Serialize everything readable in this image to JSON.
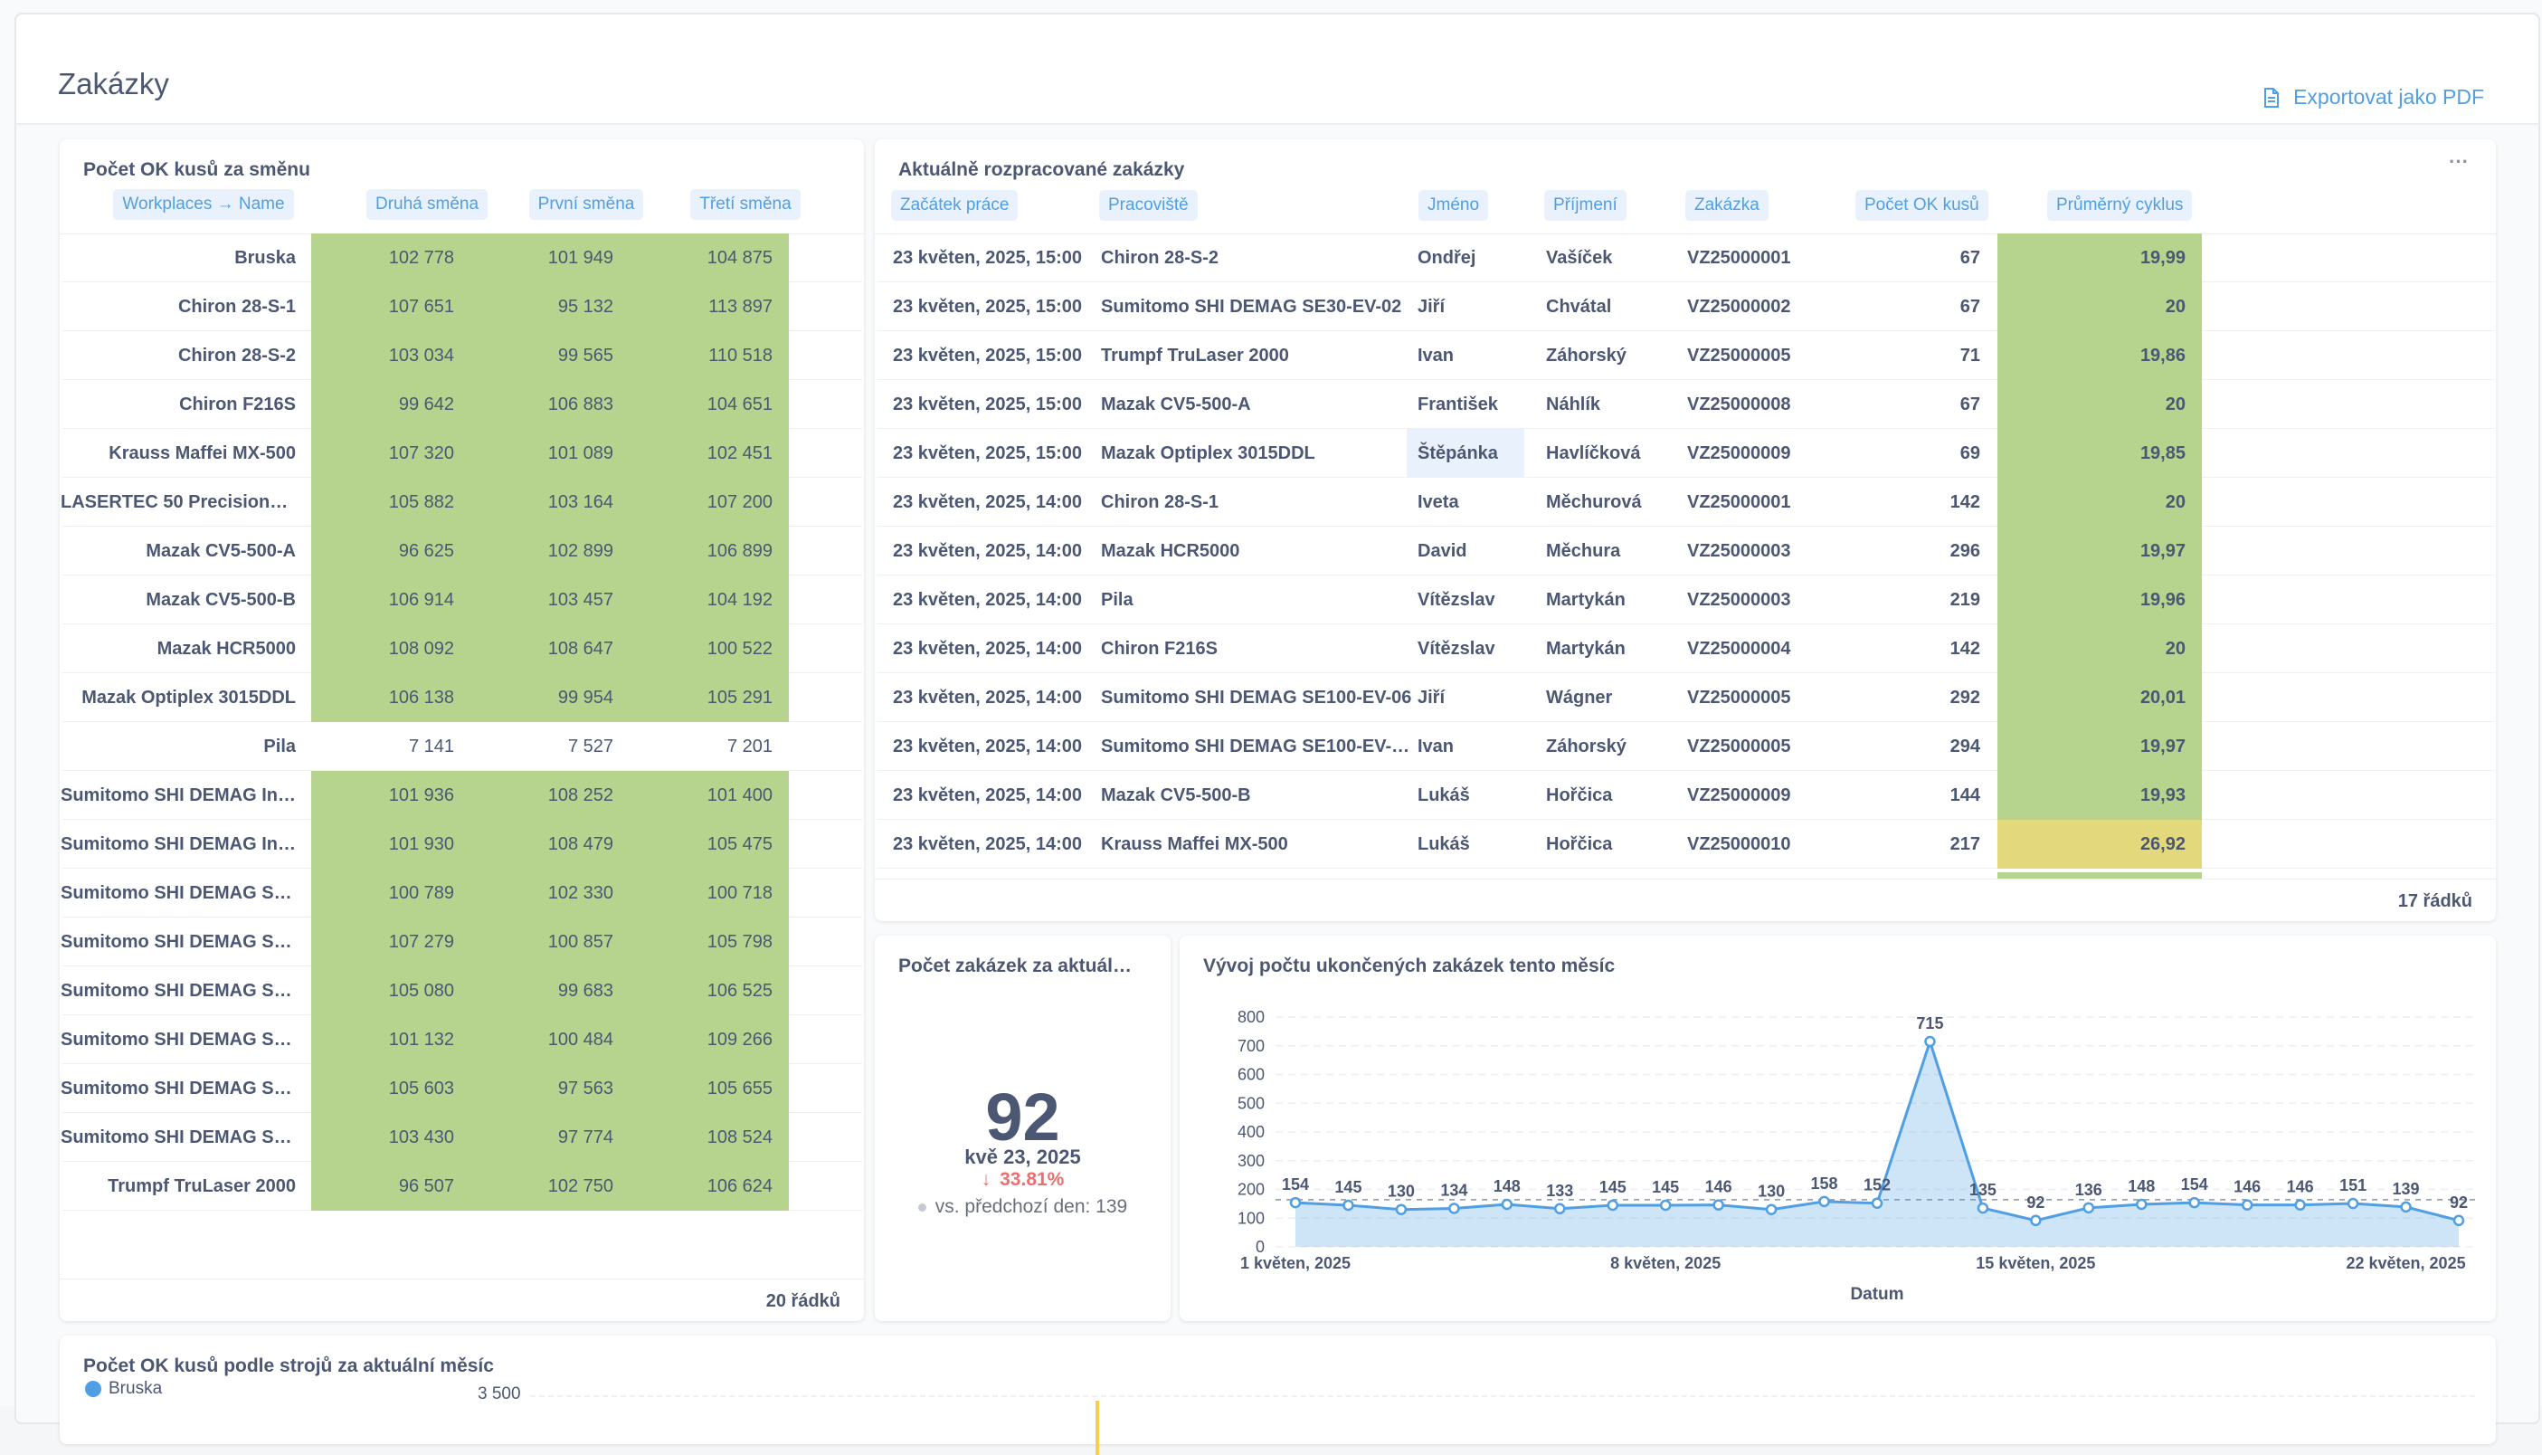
{
  "page": {
    "title": "Zakázky",
    "export_label": "Exportovat jako PDF"
  },
  "pivot": {
    "title": "Počet OK kusů za směnu",
    "headers": [
      "Workplaces → Name",
      "Druhá směna",
      "První směna",
      "Třetí směna"
    ],
    "rows": [
      {
        "name": "Bruska",
        "v": [
          "102 778",
          "101 949",
          "104 875"
        ],
        "green": true
      },
      {
        "name": "Chiron 28-S-1",
        "v": [
          "107 651",
          "95 132",
          "113 897"
        ],
        "green": true
      },
      {
        "name": "Chiron 28-S-2",
        "v": [
          "103 034",
          "99 565",
          "110 518"
        ],
        "green": true
      },
      {
        "name": "Chiron F216S",
        "v": [
          "99 642",
          "106 883",
          "104 651"
        ],
        "green": true
      },
      {
        "name": "Krauss Maffei MX-500",
        "v": [
          "107 320",
          "101 089",
          "102 451"
        ],
        "green": true
      },
      {
        "name": "LASERTEC 50 PrecisionTool",
        "v": [
          "105 882",
          "103 164",
          "107 200"
        ],
        "green": true
      },
      {
        "name": "Mazak CV5-500-A",
        "v": [
          "96 625",
          "102 899",
          "106 899"
        ],
        "green": true
      },
      {
        "name": "Mazak CV5-500-B",
        "v": [
          "106 914",
          "103 457",
          "104 192"
        ],
        "green": true
      },
      {
        "name": "Mazak HCR5000",
        "v": [
          "108 092",
          "108 647",
          "100 522"
        ],
        "green": true
      },
      {
        "name": "Mazak Optiplex 3015DDL",
        "v": [
          "106 138",
          "99 954",
          "105 291"
        ],
        "green": true
      },
      {
        "name": "Pila",
        "v": [
          "7 141",
          "7 527",
          "7 201"
        ],
        "green": false
      },
      {
        "name": "Sumitomo SHI DEMAG Int…",
        "v": [
          "101 936",
          "108 252",
          "101 400"
        ],
        "green": true
      },
      {
        "name": "Sumitomo SHI DEMAG Int…",
        "v": [
          "101 930",
          "108 479",
          "105 475"
        ],
        "green": true
      },
      {
        "name": "Sumitomo SHI DEMAG SE…",
        "v": [
          "100 789",
          "102 330",
          "100 718"
        ],
        "green": true
      },
      {
        "name": "Sumitomo SHI DEMAG SE…",
        "v": [
          "107 279",
          "100 857",
          "105 798"
        ],
        "green": true
      },
      {
        "name": "Sumitomo SHI DEMAG SE…",
        "v": [
          "105 080",
          "99 683",
          "106 525"
        ],
        "green": true
      },
      {
        "name": "Sumitomo SHI DEMAG SE…",
        "v": [
          "101 132",
          "100 484",
          "109 266"
        ],
        "green": true
      },
      {
        "name": "Sumitomo SHI DEMAG SE…",
        "v": [
          "105 603",
          "97 563",
          "105 655"
        ],
        "green": true
      },
      {
        "name": "Sumitomo SHI DEMAG SE…",
        "v": [
          "103 430",
          "97 774",
          "108 524"
        ],
        "green": true
      },
      {
        "name": "Trumpf TruLaser 2000",
        "v": [
          "96 507",
          "102 750",
          "106 624"
        ],
        "green": true
      }
    ],
    "footer": "20 řádků"
  },
  "orders": {
    "title": "Aktuálně rozpracované zakázky",
    "more": "···",
    "headers": [
      "Začátek práce",
      "Pracoviště",
      "Jméno",
      "Příjmení",
      "Zakázka",
      "Počet OK kusů",
      "Průměrný cyklus"
    ],
    "rows": [
      {
        "start": "23 květen, 2025, 15:00",
        "ws": "Chiron 28-S-2",
        "fn": "Ondřej",
        "ln": "Vašíček",
        "order": "VZ25000001",
        "ok": "67",
        "cyc": "19,99",
        "color": "#b6d48e"
      },
      {
        "start": "23 květen, 2025, 15:00",
        "ws": "Sumitomo SHI DEMAG SE30-EV-02",
        "fn": "Jiří",
        "ln": "Chvátal",
        "order": "VZ25000002",
        "ok": "67",
        "cyc": "20",
        "color": "#b6d48e"
      },
      {
        "start": "23 květen, 2025, 15:00",
        "ws": "Trumpf TruLaser 2000",
        "fn": "Ivan",
        "ln": "Záhorský",
        "order": "VZ25000005",
        "ok": "71",
        "cyc": "19,86",
        "color": "#b6d48e"
      },
      {
        "start": "23 květen, 2025, 15:00",
        "ws": "Mazak CV5-500-A",
        "fn": "František",
        "ln": "Náhlík",
        "order": "VZ25000008",
        "ok": "67",
        "cyc": "20",
        "color": "#b6d48e"
      },
      {
        "start": "23 květen, 2025, 15:00",
        "ws": "Mazak Optiplex 3015DDL",
        "fn": "Štěpánka",
        "ln": "Havlíčková",
        "order": "VZ25000009",
        "ok": "69",
        "cyc": "19,85",
        "color": "#b6d48e",
        "hl": true
      },
      {
        "start": "23 květen, 2025, 14:00",
        "ws": "Chiron 28-S-1",
        "fn": "Iveta",
        "ln": "Měchurová",
        "order": "VZ25000001",
        "ok": "142",
        "cyc": "20",
        "color": "#b6d48e"
      },
      {
        "start": "23 květen, 2025, 14:00",
        "ws": "Mazak HCR5000",
        "fn": "David",
        "ln": "Měchura",
        "order": "VZ25000003",
        "ok": "296",
        "cyc": "19,97",
        "color": "#b6d48e"
      },
      {
        "start": "23 květen, 2025, 14:00",
        "ws": "Pila",
        "fn": "Vítězslav",
        "ln": "Martykán",
        "order": "VZ25000003",
        "ok": "219",
        "cyc": "19,96",
        "color": "#b6d48e"
      },
      {
        "start": "23 květen, 2025, 14:00",
        "ws": "Chiron F216S",
        "fn": "Vítězslav",
        "ln": "Martykán",
        "order": "VZ25000004",
        "ok": "142",
        "cyc": "20",
        "color": "#b6d48e"
      },
      {
        "start": "23 květen, 2025, 14:00",
        "ws": "Sumitomo SHI DEMAG SE100-EV-06",
        "fn": "Jiří",
        "ln": "Wágner",
        "order": "VZ25000005",
        "ok": "292",
        "cyc": "20,01",
        "color": "#b6d48e"
      },
      {
        "start": "23 květen, 2025, 14:00",
        "ws": "Sumitomo SHI DEMAG SE100-EV-0…",
        "fn": "Ivan",
        "ln": "Záhorský",
        "order": "VZ25000005",
        "ok": "294",
        "cyc": "19,97",
        "color": "#b6d48e"
      },
      {
        "start": "23 květen, 2025, 14:00",
        "ws": "Mazak CV5-500-B",
        "fn": "Lukáš",
        "ln": "Hořčica",
        "order": "VZ25000009",
        "ok": "144",
        "cyc": "19,93",
        "color": "#b6d48e"
      },
      {
        "start": "23 květen, 2025, 14:00",
        "ws": "Krauss Maffei MX-500",
        "fn": "Lukáš",
        "ln": "Hořčica",
        "order": "VZ25000010",
        "ok": "217",
        "cyc": "26,92",
        "color": "#e3d97c"
      }
    ],
    "footer": "17 řádků"
  },
  "kpi": {
    "title": "Počet zakázek za aktuál…",
    "value": "92",
    "date": "kvě 23, 2025",
    "change": "33.81%",
    "previous": "vs. předchozí den: 139"
  },
  "chart_data": [
    {
      "type": "area",
      "title": "Vývoj počtu ukončených zakázek tento měsíc",
      "xlabel": "Datum",
      "ylabel": "",
      "ylim": [
        0,
        800
      ],
      "yticks": [
        "0",
        "100",
        "200",
        "300",
        "400",
        "500",
        "600",
        "700",
        "800"
      ],
      "xticks": [
        "1 květen, 2025",
        "8 květen, 2025",
        "15 květen, 2025",
        "22 květen, 2025"
      ],
      "x": [
        1,
        2,
        3,
        4,
        5,
        6,
        7,
        8,
        9,
        10,
        11,
        12,
        13,
        14,
        15,
        16,
        17,
        18,
        19,
        20,
        21,
        22,
        23
      ],
      "values": [
        154,
        145,
        130,
        134,
        148,
        133,
        145,
        145,
        146,
        130,
        158,
        152,
        715,
        135,
        92,
        136,
        148,
        154,
        146,
        146,
        151,
        139,
        92
      ],
      "labels": [
        "154",
        "145",
        "130",
        "134",
        "148",
        "133",
        "145",
        "145",
        "146",
        "130",
        "158",
        "152",
        "715",
        "135",
        "92",
        "136",
        "148",
        "154",
        "146",
        "146",
        "151",
        "139",
        "92"
      ],
      "color": "#509ee3",
      "grid": true
    },
    {
      "type": "bar",
      "title": "Počet OK kusů podle strojů za aktuální měsíc",
      "legend": [
        "Bruska"
      ],
      "legend_color": "#509ee3",
      "yticks_visible": [
        "3 500"
      ]
    }
  ]
}
